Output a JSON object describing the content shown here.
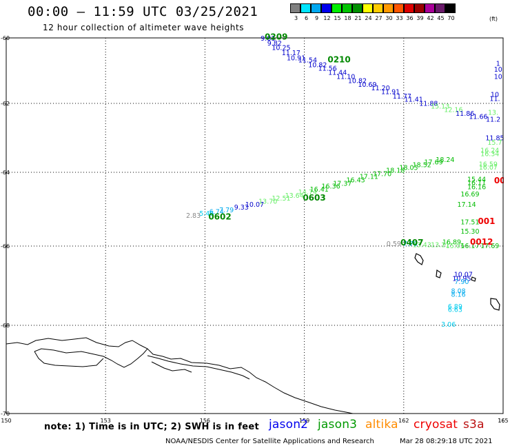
{
  "title": "00:00 — 11:59 UTC 03/25/2021",
  "subtitle": "12 hour collection of altimeter wave heights",
  "scale": {
    "unit": "(ft)",
    "bins": [
      {
        "label": "3",
        "color": "#808080"
      },
      {
        "label": "6",
        "color": "#00e5ff"
      },
      {
        "label": "9",
        "color": "#00a8f0"
      },
      {
        "label": "12",
        "color": "#0000ee"
      },
      {
        "label": "15",
        "color": "#00ee00"
      },
      {
        "label": "18",
        "color": "#00c400"
      },
      {
        "label": "21",
        "color": "#008f00"
      },
      {
        "label": "24",
        "color": "#ffff00"
      },
      {
        "label": "27",
        "color": "#ffcc00"
      },
      {
        "label": "30",
        "color": "#ff9900"
      },
      {
        "label": "33",
        "color": "#ff5500"
      },
      {
        "label": "36",
        "color": "#dd0000"
      },
      {
        "label": "39",
        "color": "#990000"
      },
      {
        "label": "42",
        "color": "#aa0099"
      },
      {
        "label": "45",
        "color": "#6a1a6a"
      },
      {
        "label": "70",
        "color": "#000000"
      }
    ]
  },
  "map": {
    "lon_range": [
      150,
      165
    ],
    "lat_range": [
      -70,
      -60
    ],
    "lon_ticks": [
      "150",
      "153",
      "156",
      "159",
      "162",
      "165"
    ],
    "lat_ticks": [
      "-60",
      "-62",
      "-64",
      "-66",
      "-68",
      "-70"
    ],
    "tracks": [
      {
        "satellite": "jason2",
        "points": [
          {
            "lon": 157.9,
            "lat": -60.08,
            "v": "9.81",
            "c": "#0000cc"
          },
          {
            "lon": 158.1,
            "lat": -60.23,
            "v": "9.82",
            "c": "#0000cc"
          },
          {
            "lon": 158.3,
            "lat": -60.37,
            "v": "10.25",
            "c": "#0000cc"
          },
          {
            "lon": 158.6,
            "lat": -60.53,
            "v": "11.17",
            "c": "#0000cc"
          },
          {
            "lon": 158.75,
            "lat": -60.68,
            "v": "10.91",
            "c": "#0000cc"
          },
          {
            "lon": 159.1,
            "lat": -60.75,
            "v": "11.54",
            "c": "#0000cc"
          },
          {
            "lon": 159.4,
            "lat": -60.89,
            "v": "10.82",
            "c": "#0000cc"
          },
          {
            "lon": 159.7,
            "lat": -61.0,
            "v": "11.56",
            "c": "#0000cc"
          },
          {
            "lon": 160.0,
            "lat": -61.13,
            "v": "11.44",
            "c": "#0000cc"
          },
          {
            "lon": 160.25,
            "lat": -61.25,
            "v": "11.10",
            "c": "#0000cc"
          },
          {
            "lon": 160.6,
            "lat": -61.38,
            "v": "10.82",
            "c": "#0000cc"
          },
          {
            "lon": 160.9,
            "lat": -61.49,
            "v": "10.69",
            "c": "#0000cc"
          },
          {
            "lon": 161.3,
            "lat": -61.6,
            "v": "11.20",
            "c": "#0000cc"
          },
          {
            "lon": 161.6,
            "lat": -61.72,
            "v": "11.91",
            "c": "#0000cc"
          },
          {
            "lon": 161.95,
            "lat": -61.85,
            "v": "11.77",
            "c": "#0000cc"
          },
          {
            "lon": 162.3,
            "lat": -61.95,
            "v": "11.41",
            "c": "#0000cc"
          },
          {
            "lon": 162.75,
            "lat": -62.07,
            "v": "11.88",
            "c": "#0000cc"
          },
          {
            "lon": 163.1,
            "lat": -62.15,
            "v": "15.13",
            "c": "#66ee66"
          },
          {
            "lon": 163.5,
            "lat": -62.25,
            "v": "12.16",
            "c": "#66ee66"
          },
          {
            "lon": 163.85,
            "lat": -62.36,
            "v": "11.86",
            "c": "#0000cc"
          },
          {
            "lon": 164.25,
            "lat": -62.45,
            "v": "11.66",
            "c": "#0000cc"
          },
          {
            "lon": 164.7,
            "lat": -62.53,
            "v": "11.2",
            "c": "#0000cc"
          },
          {
            "lon": 164.7,
            "lat": -62.33,
            "v": "13.",
            "c": "#66ee66"
          }
        ]
      },
      {
        "satellite": "jason3",
        "points": [
          {
            "lon": 155.65,
            "lat": -65.23,
            "v": "2.83",
            "c": "#888888"
          },
          {
            "lon": 156.05,
            "lat": -65.18,
            "v": "5.46",
            "c": "#00ccee"
          },
          {
            "lon": 156.35,
            "lat": -65.13,
            "v": "6.74",
            "c": "#00aaee"
          },
          {
            "lon": 156.65,
            "lat": -65.08,
            "v": "7.79",
            "c": "#00aaee"
          },
          {
            "lon": 157.1,
            "lat": -65.01,
            "v": "9.33",
            "c": "#0000cc"
          },
          {
            "lon": 157.5,
            "lat": -64.93,
            "v": "10.07",
            "c": "#0000cc"
          },
          {
            "lon": 157.9,
            "lat": -64.85,
            "v": "13.70",
            "c": "#66ee66"
          },
          {
            "lon": 158.3,
            "lat": -64.77,
            "v": "12.51",
            "c": "#66ee66"
          },
          {
            "lon": 158.7,
            "lat": -64.69,
            "v": "13.64",
            "c": "#66ee66"
          },
          {
            "lon": 159.1,
            "lat": -64.6,
            "v": "14.74",
            "c": "#66ee66"
          },
          {
            "lon": 159.45,
            "lat": -64.52,
            "v": "16.41",
            "c": "#00bb00"
          },
          {
            "lon": 159.8,
            "lat": -64.44,
            "v": "16.36",
            "c": "#00bb00"
          },
          {
            "lon": 160.15,
            "lat": -64.36,
            "v": "17.37",
            "c": "#00bb00"
          },
          {
            "lon": 160.55,
            "lat": -64.27,
            "v": "16.43",
            "c": "#00bb00"
          },
          {
            "lon": 160.95,
            "lat": -64.18,
            "v": "17.11",
            "c": "#00bb00"
          },
          {
            "lon": 161.35,
            "lat": -64.1,
            "v": "17.70",
            "c": "#00bb00"
          },
          {
            "lon": 161.75,
            "lat": -64.01,
            "v": "18.18",
            "c": "#00bb00"
          },
          {
            "lon": 162.15,
            "lat": -63.93,
            "v": "18.05",
            "c": "#00bb00"
          },
          {
            "lon": 162.55,
            "lat": -63.85,
            "v": "18.52",
            "c": "#00bb00"
          },
          {
            "lon": 162.9,
            "lat": -63.77,
            "v": "17.69",
            "c": "#00bb00"
          },
          {
            "lon": 163.25,
            "lat": -63.7,
            "v": "18.24",
            "c": "#00bb00"
          }
        ]
      },
      {
        "satellite": "jason3-col",
        "points": [
          {
            "lon": 164.75,
            "lat": -63.07,
            "v": "11.85",
            "c": "#0000cc"
          },
          {
            "lon": 164.75,
            "lat": -63.2,
            "v": "15.7",
            "c": "#66ee66"
          },
          {
            "lon": 164.6,
            "lat": -63.43,
            "v": "16.24",
            "c": "#66ee66"
          },
          {
            "lon": 164.6,
            "lat": -63.53,
            "v": "16.34",
            "c": "#66ee66"
          },
          {
            "lon": 164.55,
            "lat": -63.83,
            "v": "16.59",
            "c": "#66ee66"
          },
          {
            "lon": 164.55,
            "lat": -63.92,
            "v": "16.07",
            "c": "#66ee66"
          },
          {
            "lon": 164.2,
            "lat": -64.25,
            "v": "15.44",
            "c": "#00bb00"
          },
          {
            "lon": 164.2,
            "lat": -64.35,
            "v": "16.11",
            "c": "#00bb00"
          },
          {
            "lon": 164.2,
            "lat": -64.46,
            "v": "16.16",
            "c": "#00bb00"
          },
          {
            "lon": 164.0,
            "lat": -64.65,
            "v": "16.69",
            "c": "#00bb00"
          },
          {
            "lon": 163.9,
            "lat": -64.93,
            "v": "17.14",
            "c": "#00bb00"
          },
          {
            "lon": 164.0,
            "lat": -65.41,
            "v": "17.51",
            "c": "#00bb00"
          },
          {
            "lon": 164.0,
            "lat": -65.66,
            "v": "15.30",
            "c": "#00bb00"
          }
        ]
      },
      {
        "satellite": "jason3-south",
        "points": [
          {
            "lon": 161.7,
            "lat": -66.0,
            "v": "0.59",
            "c": "#888888"
          },
          {
            "lon": 162.2,
            "lat": -66.0,
            "v": "7.79",
            "c": "#00aaee"
          },
          {
            "lon": 162.55,
            "lat": -66.03,
            "v": "13.43",
            "c": "#66ee66"
          },
          {
            "lon": 163.1,
            "lat": -66.03,
            "v": "13.11",
            "c": "#66ee66"
          },
          {
            "lon": 163.45,
            "lat": -65.95,
            "v": "16.89",
            "c": "#00bb00"
          },
          {
            "lon": 163.55,
            "lat": -66.05,
            "v": "15.05",
            "c": "#66ee66"
          },
          {
            "lon": 164.0,
            "lat": -66.05,
            "v": "16.17",
            "c": "#00bb00"
          },
          {
            "lon": 164.6,
            "lat": -66.05,
            "v": "17.69",
            "c": "#00bb00"
          }
        ]
      },
      {
        "satellite": "jason2-col",
        "points": [
          {
            "lon": 164.85,
            "lat": -60.85,
            "v": "1",
            "c": "#0000cc"
          },
          {
            "lon": 164.85,
            "lat": -61.03,
            "v": "10",
            "c": "#0000cc"
          },
          {
            "lon": 164.85,
            "lat": -61.25,
            "v": "10",
            "c": "#0000cc"
          },
          {
            "lon": 164.75,
            "lat": -61.8,
            "v": "10",
            "c": "#0000cc"
          },
          {
            "lon": 164.75,
            "lat": -61.93,
            "v": "11.",
            "c": "#0000cc"
          },
          {
            "lon": 163.8,
            "lat": -66.77,
            "v": "10.07",
            "c": "#0000cc"
          },
          {
            "lon": 163.75,
            "lat": -66.88,
            "v": "10.95",
            "c": "#0000cc"
          },
          {
            "lon": 163.75,
            "lat": -66.96,
            "v": "7.90",
            "c": "#00aaee"
          },
          {
            "lon": 163.65,
            "lat": -67.19,
            "v": "8.08",
            "c": "#00aaee"
          },
          {
            "lon": 163.65,
            "lat": -67.28,
            "v": "8.16",
            "c": "#00aaee"
          },
          {
            "lon": 163.55,
            "lat": -67.58,
            "v": "6.89",
            "c": "#00ccee"
          },
          {
            "lon": 163.55,
            "lat": -67.66,
            "v": "6.63",
            "c": "#00ccee"
          },
          {
            "lon": 163.35,
            "lat": -68.03,
            "v": "3.06",
            "c": "#00ccee"
          }
        ]
      }
    ],
    "time_labels": [
      {
        "lon": 158.15,
        "lat": -60.05,
        "v": "0209",
        "c": "#008800"
      },
      {
        "lon": 160.05,
        "lat": -60.75,
        "v": "0210",
        "c": "#008800"
      },
      {
        "lon": 156.45,
        "lat": -65.28,
        "v": "0602",
        "c": "#008800"
      },
      {
        "lon": 159.3,
        "lat": -64.77,
        "v": "0603",
        "c": "#008800"
      },
      {
        "lon": 162.25,
        "lat": -65.98,
        "v": "0407",
        "c": "#008800"
      },
      {
        "lon": 164.9,
        "lat": -64.3,
        "v": "00",
        "c": "#ee0000"
      },
      {
        "lon": 164.5,
        "lat": -65.4,
        "v": "001",
        "c": "#ee0000"
      },
      {
        "lon": 164.35,
        "lat": -65.96,
        "v": "0012",
        "c": "#ee0000"
      }
    ],
    "islands": "coastline"
  },
  "footer": {
    "note": "note: 1) Time is in UTC; 2) SWH is in feet",
    "satellites": [
      {
        "name": "jason2",
        "color": "#0000ee"
      },
      {
        "name": "jason3",
        "color": "#009900"
      },
      {
        "name": "altika",
        "color": "#ff8c00"
      },
      {
        "name": "cryosat",
        "color": "#ee0000"
      },
      {
        "name": "s3a",
        "color": "#bb1111"
      }
    ],
    "credit": "NOAA/NESDIS Center for Satellite Applications and Research",
    "stamp": "Mar 28 08:29:18 UTC 2021"
  }
}
